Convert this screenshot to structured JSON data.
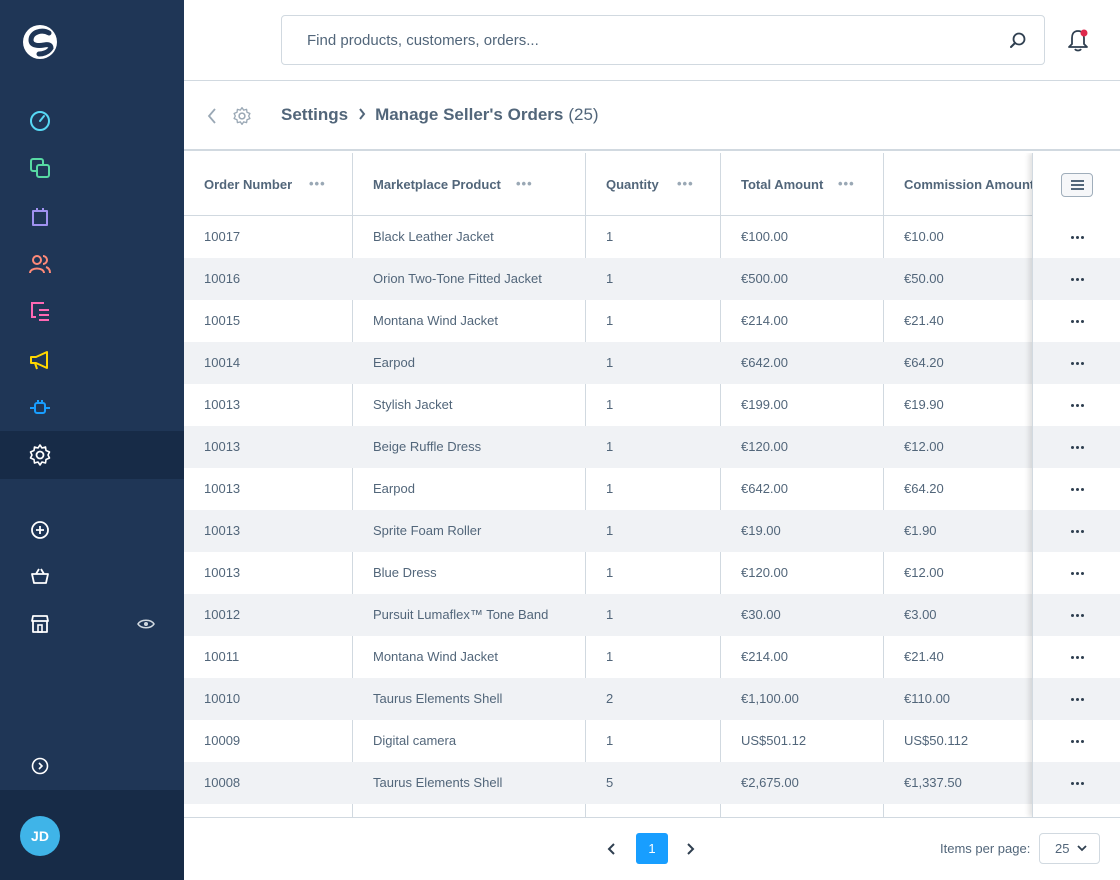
{
  "search": {
    "placeholder": "Find products, customers, orders..."
  },
  "breadcrumb": {
    "parent": "Settings",
    "title": "Manage Seller's Orders",
    "count": "(25)"
  },
  "sidebar": {
    "user_initials": "JD",
    "nav_colors": {
      "dashboard": "#57d9f5",
      "catalogues": "#57d9a3",
      "orders": "#a092f0",
      "customers": "#ff8a78",
      "content": "#ff68b4",
      "marketing": "#ffd700",
      "extensions": "#189eff",
      "settings": "#ffffff"
    }
  },
  "table": {
    "columns": [
      "Order Number",
      "Marketplace Product",
      "Quantity",
      "Total Amount",
      "Commission Amount"
    ],
    "rows": [
      [
        "10017",
        "Black Leather Jacket",
        "1",
        "€100.00",
        "€10.00"
      ],
      [
        "10016",
        "Orion Two-Tone Fitted Jacket",
        "1",
        "€500.00",
        "€50.00"
      ],
      [
        "10015",
        "Montana Wind Jacket",
        "1",
        "€214.00",
        "€21.40"
      ],
      [
        "10014",
        "Earpod",
        "1",
        "€642.00",
        "€64.20"
      ],
      [
        "10013",
        "Stylish Jacket",
        "1",
        "€199.00",
        "€19.90"
      ],
      [
        "10013",
        "Beige Ruffle Dress",
        "1",
        "€120.00",
        "€12.00"
      ],
      [
        "10013",
        "Earpod",
        "1",
        "€642.00",
        "€64.20"
      ],
      [
        "10013",
        "Sprite Foam Roller",
        "1",
        "€19.00",
        "€1.90"
      ],
      [
        "10013",
        "Blue Dress",
        "1",
        "€120.00",
        "€12.00"
      ],
      [
        "10012",
        "Pursuit Lumaflex™ Tone Band",
        "1",
        "€30.00",
        "€3.00"
      ],
      [
        "10011",
        "Montana Wind Jacket",
        "1",
        "€214.00",
        "€21.40"
      ],
      [
        "10010",
        "Taurus Elements Shell",
        "2",
        "€1,100.00",
        "€110.00"
      ],
      [
        "10009",
        "Digital camera",
        "1",
        "US$501.12",
        "US$50.112"
      ],
      [
        "10008",
        "Taurus Elements Shell",
        "5",
        "€2,675.00",
        "€1,337.50"
      ]
    ]
  },
  "pagination": {
    "current_page": "1",
    "items_per_page_label": "Items per page:",
    "items_per_page": "25"
  }
}
